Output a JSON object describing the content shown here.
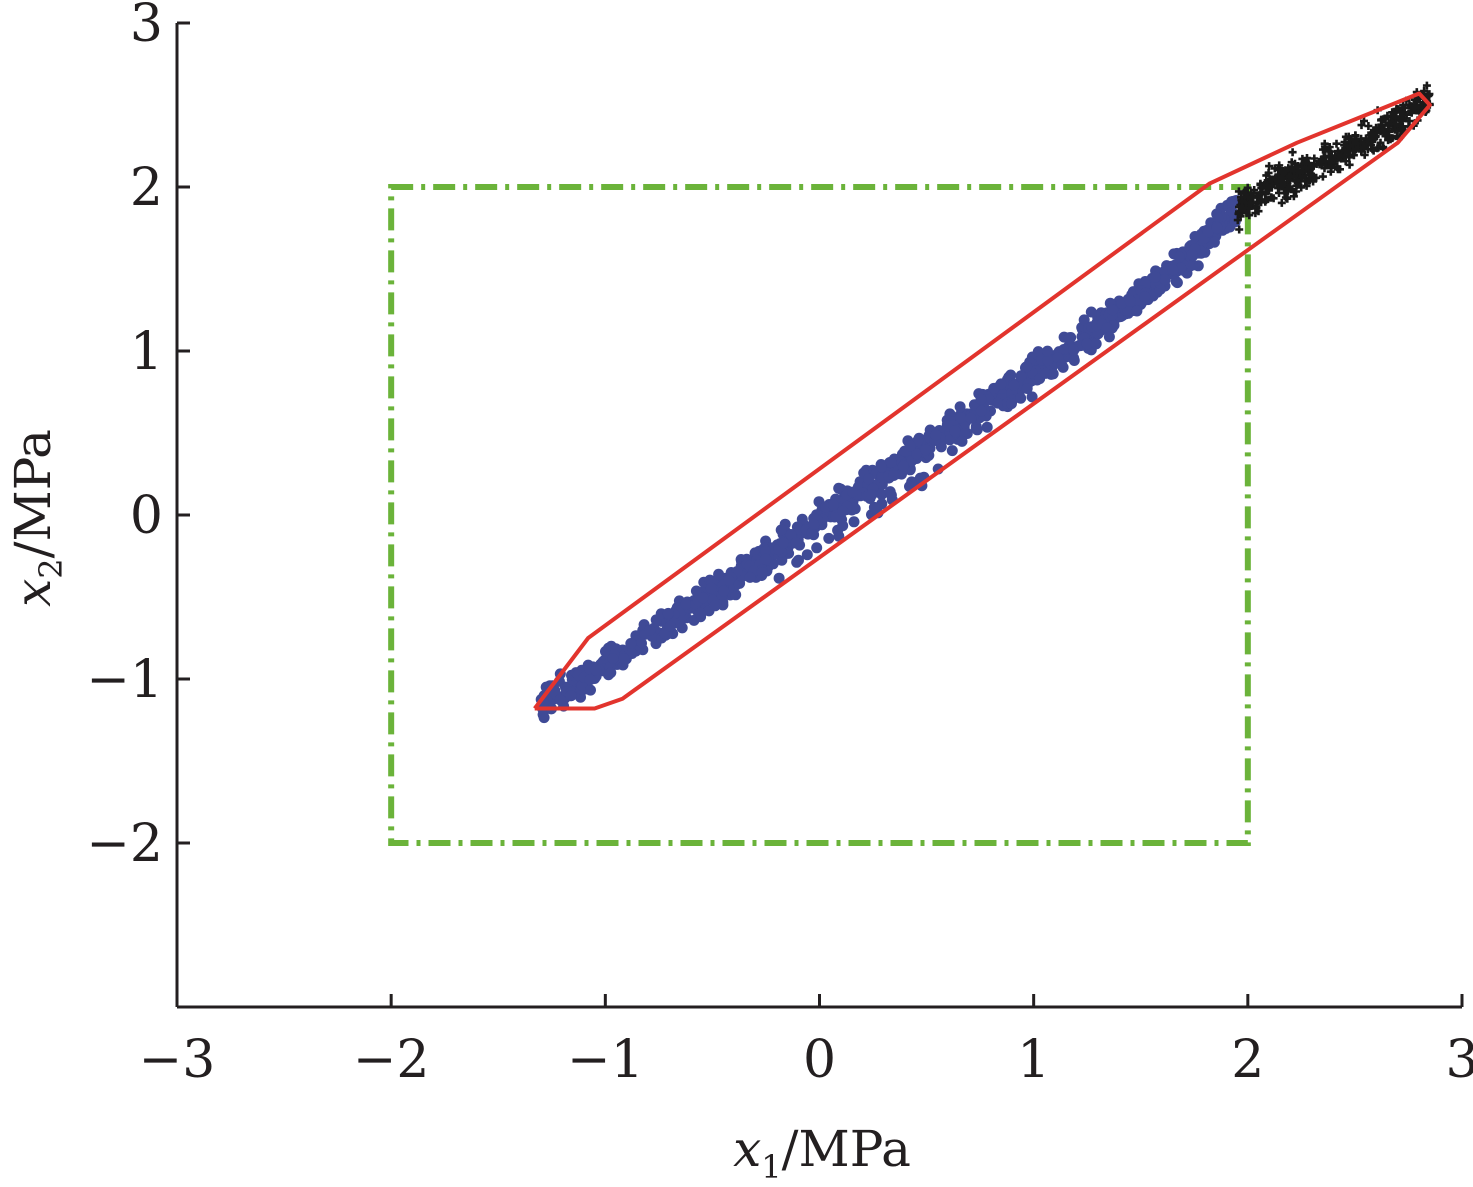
{
  "chart_data": {
    "type": "scatter",
    "title": "",
    "xlabel": {
      "var": "x",
      "sub": "1",
      "unit": "/MPa"
    },
    "ylabel": {
      "var": "x",
      "sub": "2",
      "unit": "/MPa"
    },
    "xlim": [
      -3,
      3
    ],
    "ylim": [
      -3,
      3
    ],
    "x_ticks": [
      -3,
      -2,
      -1,
      0,
      1,
      2,
      3
    ],
    "y_ticks": [
      -2,
      -1,
      0,
      1,
      2,
      3
    ],
    "x_tick_labels": [
      "−3",
      "−2",
      "−1",
      "0",
      "1",
      "2",
      "3"
    ],
    "y_tick_labels": [
      "−2",
      "−1",
      "0",
      "1",
      "2",
      "3"
    ],
    "grid": false,
    "legend": "none",
    "colors": {
      "scatter_inside": "#3f4a96",
      "scatter_outside": "#1a1a1a",
      "hull": "#e2342d",
      "box": "#6bb33a",
      "axis": "#231f20"
    },
    "box": {
      "x": [
        -2,
        2
      ],
      "y": [
        -2,
        2
      ],
      "style": "dash-dot"
    },
    "hull": [
      [
        -1.33,
        -1.18
      ],
      [
        -1.05,
        -1.18
      ],
      [
        -0.92,
        -1.12
      ],
      [
        1.93,
        1.55
      ],
      [
        2.7,
        2.27
      ],
      [
        2.85,
        2.5
      ],
      [
        2.8,
        2.57
      ],
      [
        2.23,
        2.27
      ],
      [
        1.82,
        2.02
      ],
      [
        -1.08,
        -0.75
      ],
      [
        -1.33,
        -1.18
      ]
    ],
    "series": [
      {
        "marker": "dot",
        "band": {
          "x": [
            -1.3,
            -1.0,
            -0.7,
            -0.4,
            -0.1,
            0.2,
            0.5,
            0.8,
            1.1,
            1.4,
            1.7,
            1.95
          ],
          "y": [
            -1.15,
            -0.92,
            -0.66,
            -0.4,
            -0.12,
            0.15,
            0.42,
            0.7,
            0.98,
            1.25,
            1.55,
            1.86
          ]
        },
        "lower_trail": {
          "x": [
            -0.2,
            0.2,
            0.5,
            0.9,
            1.3,
            1.6,
            1.8,
            1.95
          ],
          "y": [
            -0.4,
            0.0,
            0.25,
            0.7,
            1.05,
            1.45,
            1.7,
            1.9
          ]
        }
      },
      {
        "marker": "cross",
        "cluster": {
          "x": [
            1.95,
            2.1,
            2.3,
            2.5,
            2.7,
            2.85
          ],
          "y": [
            1.85,
            2.0,
            2.12,
            2.25,
            2.4,
            2.55
          ]
        }
      }
    ]
  }
}
